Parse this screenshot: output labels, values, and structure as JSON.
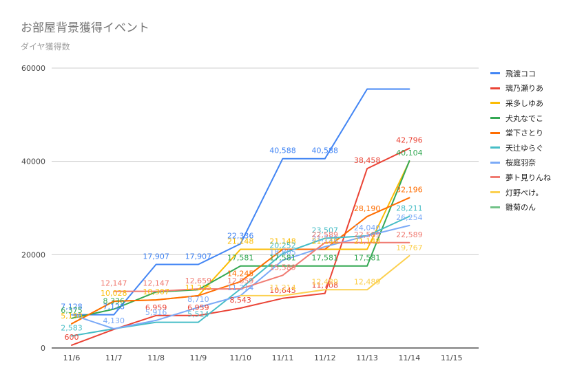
{
  "chart_data": {
    "type": "line",
    "title": "お部屋背景獲得イベント",
    "subtitle": "ダイヤ獲得数",
    "xlabel": "",
    "ylabel": "",
    "categories": [
      "11/6",
      "11/7",
      "11/8",
      "11/9",
      "11/10",
      "11/11",
      "11/12",
      "11/13",
      "11/14",
      "11/15"
    ],
    "ylim": [
      0,
      60000
    ],
    "yticks": [
      0,
      20000,
      40000,
      60000
    ],
    "ytick_labels": [
      "0",
      "20000",
      "40000",
      "60000"
    ],
    "grid": true,
    "legend_position": "right",
    "series": [
      {
        "name": "飛渡ココ",
        "color": "#4285f4",
        "values": [
          7128,
          7128,
          17907,
          17907,
          22336,
          40588,
          40588,
          55500,
          55500,
          null
        ],
        "labels": [
          "7,128",
          "7,128",
          "17,907",
          "17,907",
          "22,336",
          "40,588",
          "40,588",
          "",
          "",
          ""
        ]
      },
      {
        "name": "璃乃瀬りあ",
        "color": "#ea4335",
        "values": [
          600,
          4000,
          6959,
          6959,
          8543,
          10645,
          11708,
          38458,
          42796,
          null
        ],
        "labels": [
          "600",
          "",
          "6,959",
          "6,959",
          "8,543",
          "10,645",
          "11,708",
          "38,458",
          "42,796",
          ""
        ]
      },
      {
        "name": "采多しゆあ",
        "color": "#fbbc04",
        "values": [
          5190,
          10028,
          10307,
          11215,
          21148,
          21148,
          21148,
          21148,
          40000,
          null
        ],
        "labels": [
          "5,190",
          "10,028",
          "10,307",
          "11,215",
          "21,148",
          "21,148",
          "21,148",
          "21,148",
          "",
          ""
        ]
      },
      {
        "name": "犬丸なでこ",
        "color": "#34a853",
        "values": [
          6375,
          8336,
          12000,
          12500,
          17581,
          17581,
          17581,
          17581,
          40104,
          null
        ],
        "labels": [
          "6,375",
          "8,336",
          "",
          "",
          "17,581",
          "17,581",
          "17,581",
          "17,581",
          "40,104",
          ""
        ]
      },
      {
        "name": "堂下さとり",
        "color": "#ff6d01",
        "values": [
          5190,
          10028,
          10307,
          11215,
          14245,
          21148,
          21148,
          28190,
          32196,
          null
        ],
        "labels": [
          "",
          "",
          "",
          "",
          "14,245",
          "",
          "",
          "28,190",
          "32,196",
          ""
        ]
      },
      {
        "name": "天辻ゆらぐ",
        "color": "#46bdc6",
        "values": [
          2583,
          4130,
          5514,
          5514,
          12659,
          20252,
          23507,
          24040,
          28211,
          null
        ],
        "labels": [
          "2,583",
          "",
          "",
          "5,514",
          "",
          "20,252",
          "23,507",
          "",
          "28,211",
          ""
        ]
      },
      {
        "name": "桜庭羽奈",
        "color": "#7baaf7",
        "values": [
          7128,
          4130,
          5916,
          8710,
          11214,
          18805,
          21711,
          24040,
          26254,
          null
        ],
        "labels": [
          "",
          "4,130",
          "5,916",
          "8,710",
          "11,214",
          "18,805",
          "21,711",
          "24,040",
          "26,254",
          ""
        ]
      },
      {
        "name": "夢ト見りんね",
        "color": "#f07b72",
        "values": [
          null,
          12147,
          12147,
          12659,
          12659,
          15589,
          22589,
          22589,
          22589,
          null
        ],
        "labels": [
          "",
          "12,147",
          "12,147",
          "12,659",
          "12,659",
          "15,589",
          "22,589",
          "22,589",
          "22,589",
          ""
        ]
      },
      {
        "name": "灯野ぺけ。",
        "color": "#fcd04f",
        "values": [
          null,
          null,
          null,
          null,
          11214,
          11214,
          12489,
          12489,
          19767,
          null
        ],
        "labels": [
          "",
          "",
          "",
          "",
          "",
          "11,214",
          "12,489",
          "12,489",
          "19,767",
          ""
        ]
      },
      {
        "name": "雛菊のん",
        "color": "#71c287",
        "values": [
          null,
          null,
          null,
          null,
          null,
          null,
          null,
          null,
          null,
          null
        ],
        "labels": [
          "",
          "",
          "",
          "",
          "",
          "",
          "",
          "",
          "",
          ""
        ]
      }
    ]
  }
}
